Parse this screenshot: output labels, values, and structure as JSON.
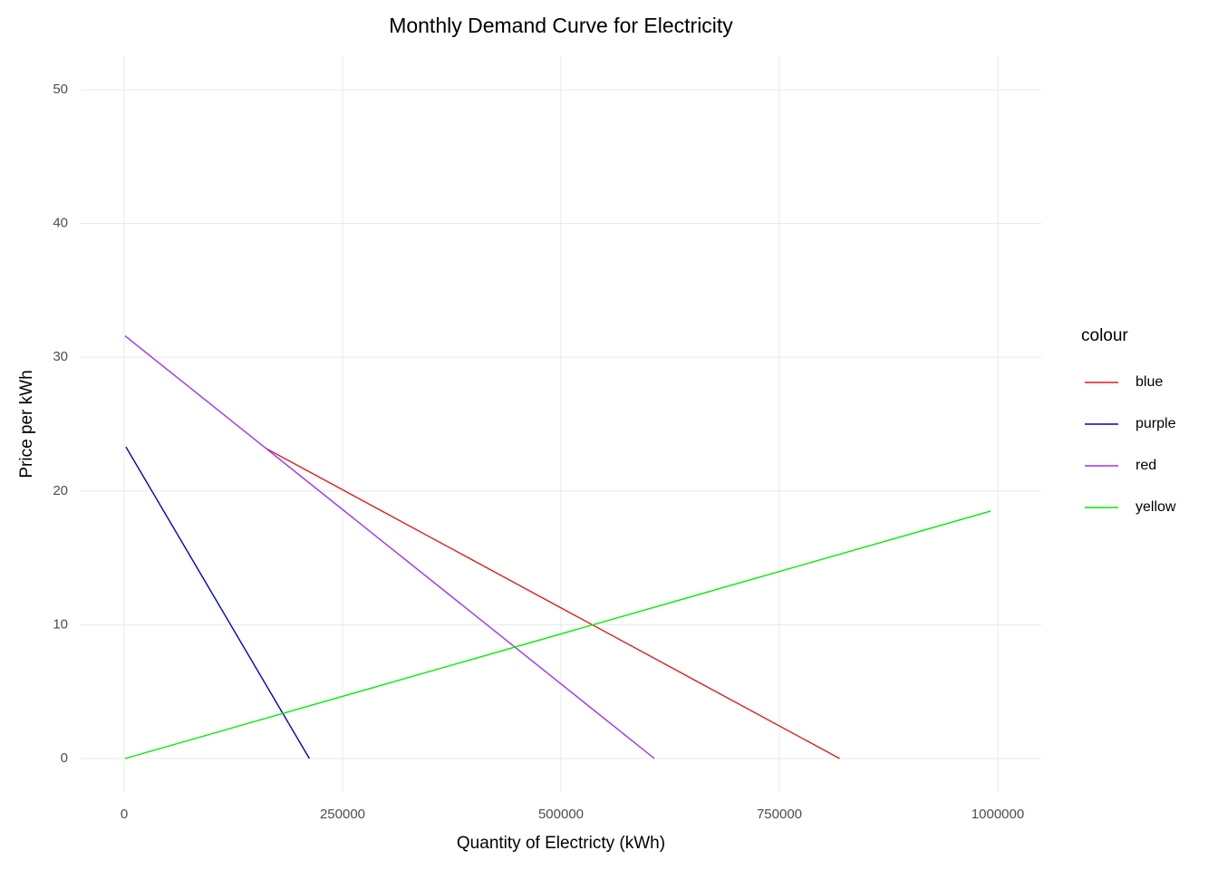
{
  "chart_data": {
    "type": "line",
    "title": "Monthly Demand Curve for Electricity",
    "x_label": "Quantity of Electricty (kWh)",
    "y_label": "Price per kWh",
    "legend_title": "colour",
    "legend_position": "right",
    "grid": true,
    "xlim": [
      -50000,
      1050000
    ],
    "xticks": [
      0,
      250000,
      500000,
      750000,
      1000000
    ],
    "ylim": [
      -2.5,
      52.5
    ],
    "yticks": [
      0,
      10,
      20,
      30,
      40,
      50
    ],
    "series": [
      {
        "name": "blue",
        "color": "#e41a1c",
        "x": [
          162000,
          819000
        ],
        "values": [
          23.2,
          0
        ]
      },
      {
        "name": "purple",
        "color": "#0000cd",
        "x": [
          2000,
          212000
        ],
        "values": [
          23.3,
          0
        ]
      },
      {
        "name": "red",
        "color": "#9b30ff",
        "x": [
          1000,
          607000
        ],
        "values": [
          31.6,
          0
        ]
      },
      {
        "name": "yellow",
        "color": "#00ee00",
        "x": [
          1000,
          992000
        ],
        "values": [
          0,
          18.5
        ]
      }
    ]
  }
}
